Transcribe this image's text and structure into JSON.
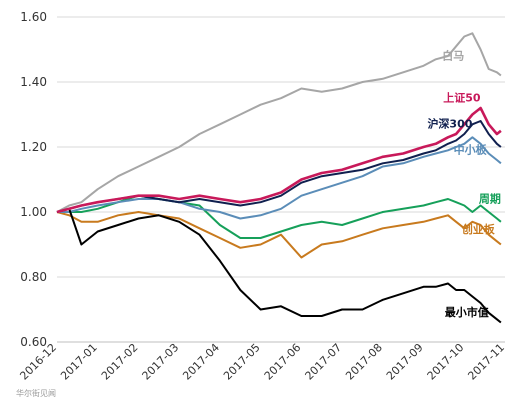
{
  "chart_data": {
    "type": "line",
    "title": "",
    "xlabel": "",
    "ylabel": "",
    "ylim": [
      0.6,
      1.6
    ],
    "yticks": [
      0.6,
      0.8,
      1.0,
      1.2,
      1.4,
      1.6
    ],
    "ytick_labels": [
      "0.60",
      "0.80",
      "1.00",
      "1.20",
      "1.40",
      "1.60"
    ],
    "x_tick_labels": [
      "2016-12",
      "2017-01",
      "2017-02",
      "2017-03",
      "2017-04",
      "2017-05",
      "2017-06",
      "2017-07",
      "2017-08",
      "2017-09",
      "2017-10",
      "2017-11"
    ],
    "grid": "horizontal",
    "legend": "inline labels at line ends",
    "watermark": "华尔街见闻",
    "series": [
      {
        "name": "白马",
        "color": "#a6a6a6",
        "x": [
          0,
          0.3,
          0.6,
          1.0,
          1.5,
          2.0,
          2.5,
          3.0,
          3.5,
          4.0,
          4.5,
          5.0,
          5.5,
          6.0,
          6.5,
          7.0,
          7.5,
          8.0,
          8.5,
          9.0,
          9.3,
          9.6,
          9.8,
          10.0,
          10.2,
          10.4,
          10.6,
          10.8,
          10.9
        ],
        "values": [
          1.0,
          1.02,
          1.03,
          1.07,
          1.11,
          1.14,
          1.17,
          1.2,
          1.24,
          1.27,
          1.3,
          1.33,
          1.35,
          1.38,
          1.37,
          1.38,
          1.4,
          1.41,
          1.43,
          1.45,
          1.47,
          1.48,
          1.51,
          1.54,
          1.55,
          1.5,
          1.44,
          1.43,
          1.42
        ]
      },
      {
        "name": "上证50",
        "color": "#c8195a",
        "x": [
          0,
          0.3,
          0.6,
          1.0,
          1.5,
          2.0,
          2.5,
          3.0,
          3.5,
          4.0,
          4.5,
          5.0,
          5.5,
          6.0,
          6.5,
          7.0,
          7.5,
          8.0,
          8.5,
          9.0,
          9.3,
          9.6,
          9.8,
          10.0,
          10.2,
          10.4,
          10.6,
          10.8,
          10.9
        ],
        "values": [
          1.0,
          1.01,
          1.02,
          1.03,
          1.04,
          1.05,
          1.05,
          1.04,
          1.05,
          1.04,
          1.03,
          1.04,
          1.06,
          1.1,
          1.12,
          1.13,
          1.15,
          1.17,
          1.18,
          1.2,
          1.21,
          1.23,
          1.24,
          1.27,
          1.3,
          1.32,
          1.27,
          1.24,
          1.25
        ]
      },
      {
        "name": "沪深300",
        "color": "#10204f",
        "x": [
          0,
          0.3,
          0.6,
          1.0,
          1.5,
          2.0,
          2.5,
          3.0,
          3.5,
          4.0,
          4.5,
          5.0,
          5.5,
          6.0,
          6.5,
          7.0,
          7.5,
          8.0,
          8.5,
          9.0,
          9.3,
          9.6,
          9.8,
          10.0,
          10.2,
          10.4,
          10.6,
          10.8,
          10.9
        ],
        "values": [
          1.0,
          1.01,
          1.02,
          1.03,
          1.04,
          1.05,
          1.04,
          1.03,
          1.04,
          1.03,
          1.02,
          1.03,
          1.05,
          1.09,
          1.11,
          1.12,
          1.13,
          1.15,
          1.16,
          1.18,
          1.19,
          1.21,
          1.22,
          1.24,
          1.27,
          1.28,
          1.24,
          1.21,
          1.2
        ]
      },
      {
        "name": "中小板",
        "color": "#5b8db8",
        "x": [
          0,
          0.3,
          0.6,
          1.0,
          1.5,
          2.0,
          2.5,
          3.0,
          3.5,
          4.0,
          4.5,
          5.0,
          5.5,
          6.0,
          6.5,
          7.0,
          7.5,
          8.0,
          8.5,
          9.0,
          9.3,
          9.6,
          9.8,
          10.0,
          10.2,
          10.4,
          10.6,
          10.8,
          10.9
        ],
        "values": [
          1.0,
          1.0,
          1.01,
          1.02,
          1.03,
          1.04,
          1.04,
          1.03,
          1.01,
          1.0,
          0.98,
          0.99,
          1.01,
          1.05,
          1.07,
          1.09,
          1.11,
          1.14,
          1.15,
          1.17,
          1.18,
          1.19,
          1.2,
          1.21,
          1.23,
          1.21,
          1.18,
          1.16,
          1.15
        ]
      },
      {
        "name": "周期",
        "color": "#16a05a",
        "x": [
          0,
          0.3,
          0.6,
          1.0,
          1.5,
          2.0,
          2.5,
          3.0,
          3.5,
          4.0,
          4.5,
          5.0,
          5.5,
          6.0,
          6.5,
          7.0,
          7.5,
          8.0,
          8.5,
          9.0,
          9.3,
          9.6,
          9.8,
          10.0,
          10.2,
          10.4,
          10.6,
          10.8,
          10.9
        ],
        "values": [
          1.0,
          1.0,
          1.0,
          1.01,
          1.03,
          1.05,
          1.04,
          1.03,
          1.02,
          0.96,
          0.92,
          0.92,
          0.94,
          0.96,
          0.97,
          0.96,
          0.98,
          1.0,
          1.01,
          1.02,
          1.03,
          1.04,
          1.03,
          1.02,
          1.0,
          1.02,
          1.0,
          0.98,
          0.97
        ]
      },
      {
        "name": "创业板",
        "color": "#c87a1e",
        "x": [
          0,
          0.3,
          0.6,
          1.0,
          1.5,
          2.0,
          2.5,
          3.0,
          3.5,
          4.0,
          4.5,
          5.0,
          5.5,
          6.0,
          6.5,
          7.0,
          7.5,
          8.0,
          8.5,
          9.0,
          9.3,
          9.6,
          9.8,
          10.0,
          10.2,
          10.4,
          10.6,
          10.8,
          10.9
        ],
        "values": [
          1.0,
          0.99,
          0.97,
          0.97,
          0.99,
          1.0,
          0.99,
          0.98,
          0.95,
          0.92,
          0.89,
          0.9,
          0.93,
          0.86,
          0.9,
          0.91,
          0.93,
          0.95,
          0.96,
          0.97,
          0.98,
          0.99,
          0.97,
          0.95,
          0.97,
          0.96,
          0.93,
          0.91,
          0.9
        ]
      },
      {
        "name": "最小市值",
        "color": "#000000",
        "x": [
          0,
          0.3,
          0.6,
          1.0,
          1.5,
          2.0,
          2.5,
          3.0,
          3.5,
          4.0,
          4.5,
          5.0,
          5.5,
          6.0,
          6.5,
          7.0,
          7.5,
          8.0,
          8.5,
          9.0,
          9.3,
          9.6,
          9.8,
          10.0,
          10.2,
          10.4,
          10.6,
          10.8,
          10.9
        ],
        "values": [
          1.0,
          1.01,
          0.9,
          0.94,
          0.96,
          0.98,
          0.99,
          0.97,
          0.93,
          0.85,
          0.76,
          0.7,
          0.71,
          0.68,
          0.68,
          0.7,
          0.7,
          0.73,
          0.75,
          0.77,
          0.77,
          0.78,
          0.76,
          0.76,
          0.74,
          0.72,
          0.69,
          0.67,
          0.66
        ]
      }
    ]
  }
}
